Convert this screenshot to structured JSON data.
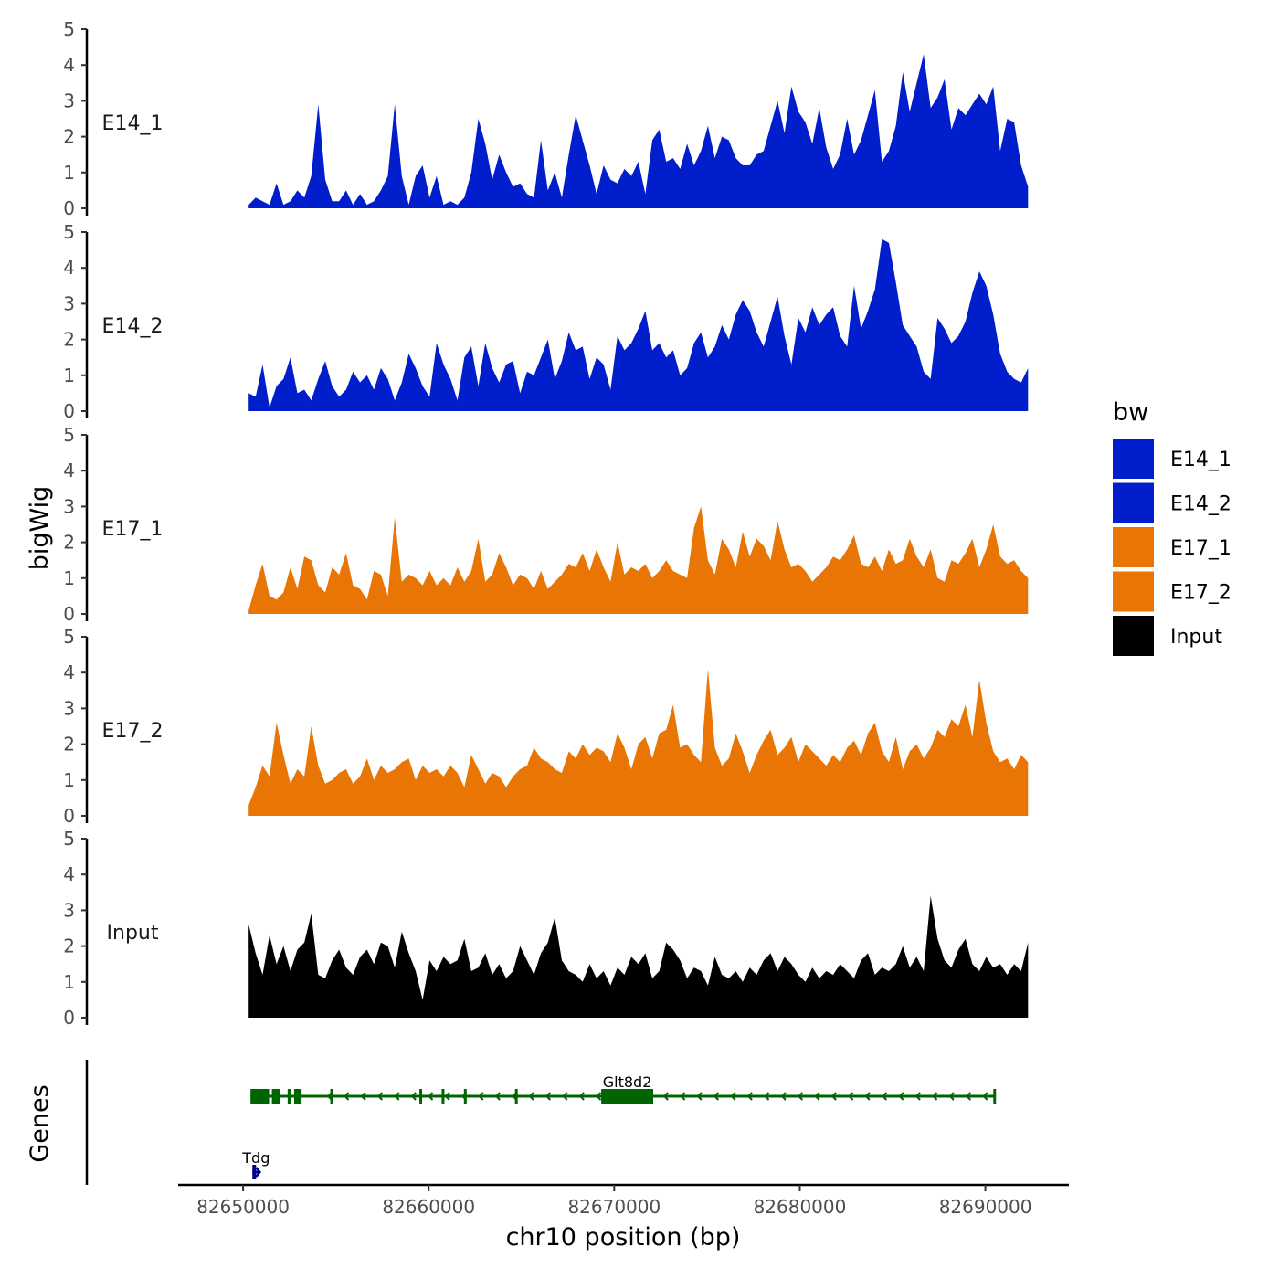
{
  "chart_data": {
    "type": "area",
    "title": "",
    "ylabel": "bigWig",
    "xlabel": "chr10 position (bp)",
    "genes_label": "Genes",
    "xlim": [
      82646500,
      82694500
    ],
    "ylim": [
      0,
      5
    ],
    "x_ticks": [
      82650000,
      82660000,
      82670000,
      82680000,
      82690000
    ],
    "x_tick_labels": [
      "82650000",
      "82660000",
      "82670000",
      "82680000",
      "82690000"
    ],
    "y_ticks": [
      0,
      1,
      2,
      3,
      4,
      5
    ],
    "y_tick_labels": [
      "0",
      "1",
      "2",
      "3",
      "4",
      "5"
    ],
    "legend": {
      "title": "bw",
      "entries": [
        {
          "label": "E14_1",
          "color": "#001ECC"
        },
        {
          "label": "E14_2",
          "color": "#001ECC"
        },
        {
          "label": "E17_1",
          "color": "#E87504"
        },
        {
          "label": "E17_2",
          "color": "#E87504"
        },
        {
          "label": "Input",
          "color": "#000000"
        }
      ]
    },
    "series": [
      {
        "name": "E14_1",
        "color": "#001ECC",
        "x_start": 82650300,
        "x_end": 82692300,
        "values": [
          0.1,
          0.3,
          0.2,
          0.1,
          0.7,
          0.1,
          0.2,
          0.5,
          0.3,
          0.9,
          2.9,
          0.8,
          0.2,
          0.2,
          0.5,
          0.1,
          0.4,
          0.1,
          0.2,
          0.5,
          0.9,
          2.9,
          0.9,
          0.1,
          0.9,
          1.2,
          0.3,
          0.9,
          0.1,
          0.2,
          0.1,
          0.3,
          1.0,
          2.5,
          1.8,
          0.8,
          1.5,
          1.0,
          0.6,
          0.7,
          0.4,
          0.3,
          1.9,
          0.5,
          1.0,
          0.3,
          1.5,
          2.6,
          1.9,
          1.2,
          0.4,
          1.2,
          0.8,
          0.7,
          1.1,
          0.9,
          1.3,
          0.4,
          1.9,
          2.2,
          1.3,
          1.4,
          1.1,
          1.8,
          1.2,
          1.6,
          2.3,
          1.4,
          2.0,
          1.9,
          1.4,
          1.2,
          1.2,
          1.5,
          1.6,
          2.3,
          3.0,
          2.1,
          3.4,
          2.7,
          2.4,
          1.8,
          2.8,
          1.7,
          1.1,
          1.5,
          2.5,
          1.5,
          1.9,
          2.6,
          3.3,
          1.3,
          1.6,
          2.3,
          3.8,
          2.7,
          3.5,
          4.3,
          2.8,
          3.1,
          3.6,
          2.2,
          2.8,
          2.6,
          2.9,
          3.2,
          2.9,
          3.4,
          1.6,
          2.5,
          2.4,
          1.2,
          0.6
        ]
      },
      {
        "name": "E14_2",
        "color": "#001ECC",
        "x_start": 82650300,
        "x_end": 82692300,
        "values": [
          0.5,
          0.4,
          1.3,
          0.1,
          0.7,
          0.9,
          1.5,
          0.5,
          0.6,
          0.3,
          0.9,
          1.4,
          0.7,
          0.4,
          0.6,
          1.1,
          0.8,
          1.0,
          0.6,
          1.2,
          0.9,
          0.3,
          0.8,
          1.6,
          1.2,
          0.7,
          0.4,
          1.9,
          1.3,
          0.9,
          0.3,
          1.5,
          1.8,
          0.7,
          1.9,
          1.2,
          0.8,
          1.3,
          1.4,
          0.5,
          1.1,
          1.0,
          1.5,
          2.0,
          0.9,
          1.4,
          2.2,
          1.7,
          1.8,
          0.9,
          1.5,
          1.3,
          0.6,
          2.1,
          1.7,
          1.9,
          2.3,
          2.8,
          1.7,
          1.9,
          1.5,
          1.7,
          1.0,
          1.2,
          1.9,
          2.2,
          1.5,
          1.8,
          2.4,
          2.0,
          2.7,
          3.1,
          2.8,
          2.2,
          1.8,
          2.5,
          3.2,
          2.1,
          1.3,
          2.6,
          2.2,
          2.9,
          2.4,
          2.7,
          2.9,
          2.1,
          1.8,
          3.5,
          2.3,
          2.8,
          3.4,
          4.8,
          4.7,
          3.6,
          2.4,
          2.1,
          1.8,
          1.1,
          0.9,
          2.6,
          2.3,
          1.9,
          2.1,
          2.5,
          3.3,
          3.9,
          3.5,
          2.7,
          1.6,
          1.1,
          0.9,
          0.8,
          1.2
        ]
      },
      {
        "name": "E17_1",
        "color": "#E87504",
        "x_start": 82650300,
        "x_end": 82692300,
        "values": [
          0.1,
          0.8,
          1.4,
          0.5,
          0.4,
          0.6,
          1.3,
          0.7,
          1.6,
          1.5,
          0.8,
          0.6,
          1.3,
          1.1,
          1.7,
          0.8,
          0.7,
          0.4,
          1.2,
          1.1,
          0.5,
          2.7,
          0.9,
          1.1,
          1.0,
          0.8,
          1.2,
          0.8,
          1.0,
          0.8,
          1.3,
          0.9,
          1.2,
          2.1,
          0.9,
          1.1,
          1.7,
          1.3,
          0.8,
          1.1,
          1.0,
          0.7,
          1.2,
          0.7,
          0.9,
          1.1,
          1.4,
          1.3,
          1.7,
          1.2,
          1.8,
          1.3,
          0.9,
          2.0,
          1.1,
          1.3,
          1.2,
          1.4,
          1.0,
          1.2,
          1.5,
          1.2,
          1.1,
          1.0,
          2.4,
          3.0,
          1.5,
          1.1,
          2.1,
          1.8,
          1.3,
          2.3,
          1.6,
          2.1,
          1.9,
          1.5,
          2.6,
          1.8,
          1.3,
          1.4,
          1.2,
          0.9,
          1.1,
          1.3,
          1.6,
          1.5,
          1.8,
          2.2,
          1.4,
          1.3,
          1.6,
          1.2,
          1.8,
          1.4,
          1.5,
          2.1,
          1.6,
          1.3,
          1.8,
          1.0,
          0.9,
          1.5,
          1.4,
          1.7,
          2.1,
          1.3,
          1.8,
          2.5,
          1.6,
          1.4,
          1.5,
          1.2,
          1.0
        ]
      },
      {
        "name": "E17_2",
        "color": "#E87504",
        "x_start": 82650300,
        "x_end": 82692300,
        "values": [
          0.3,
          0.8,
          1.4,
          1.1,
          2.6,
          1.7,
          0.9,
          1.3,
          1.1,
          2.5,
          1.4,
          0.9,
          1.0,
          1.2,
          1.3,
          0.9,
          1.1,
          1.6,
          1.0,
          1.4,
          1.2,
          1.3,
          1.5,
          1.6,
          1.0,
          1.4,
          1.2,
          1.3,
          1.1,
          1.4,
          1.2,
          0.8,
          1.7,
          1.3,
          0.9,
          1.2,
          1.1,
          0.8,
          1.1,
          1.3,
          1.4,
          1.9,
          1.6,
          1.5,
          1.3,
          1.2,
          1.8,
          1.6,
          2.0,
          1.7,
          1.9,
          1.8,
          1.5,
          2.3,
          1.9,
          1.3,
          2.0,
          2.2,
          1.6,
          2.3,
          2.4,
          3.1,
          1.9,
          2.0,
          1.7,
          1.5,
          4.1,
          1.9,
          1.4,
          1.6,
          2.3,
          1.8,
          1.2,
          1.7,
          2.1,
          2.4,
          1.7,
          1.9,
          2.2,
          1.5,
          2.0,
          1.8,
          1.6,
          1.4,
          1.7,
          1.5,
          1.9,
          2.1,
          1.7,
          2.3,
          2.6,
          1.8,
          1.5,
          2.2,
          1.3,
          1.8,
          2.0,
          1.6,
          1.9,
          2.4,
          2.2,
          2.7,
          2.5,
          3.1,
          2.2,
          3.8,
          2.6,
          1.8,
          1.5,
          1.6,
          1.3,
          1.7,
          1.5
        ]
      },
      {
        "name": "Input",
        "color": "#000000",
        "x_start": 82650300,
        "x_end": 82692300,
        "values": [
          2.6,
          1.8,
          1.2,
          2.3,
          1.5,
          2.0,
          1.3,
          1.9,
          2.1,
          2.9,
          1.2,
          1.1,
          1.6,
          1.9,
          1.4,
          1.2,
          1.7,
          1.9,
          1.5,
          2.1,
          2.0,
          1.4,
          2.4,
          1.8,
          1.3,
          0.5,
          1.6,
          1.3,
          1.7,
          1.5,
          1.6,
          2.2,
          1.3,
          1.4,
          1.8,
          1.2,
          1.5,
          1.1,
          1.3,
          2.0,
          1.6,
          1.2,
          1.8,
          2.1,
          2.8,
          1.6,
          1.3,
          1.2,
          1.0,
          1.5,
          1.1,
          1.3,
          0.9,
          1.4,
          1.2,
          1.7,
          1.5,
          1.8,
          1.1,
          1.3,
          2.1,
          1.9,
          1.6,
          1.1,
          1.4,
          1.3,
          0.9,
          1.7,
          1.2,
          1.1,
          1.3,
          1.0,
          1.4,
          1.2,
          1.6,
          1.8,
          1.3,
          1.7,
          1.5,
          1.2,
          1.0,
          1.4,
          1.1,
          1.3,
          1.2,
          1.5,
          1.3,
          1.1,
          1.6,
          1.8,
          1.2,
          1.4,
          1.3,
          1.5,
          2.0,
          1.4,
          1.7,
          1.3,
          3.4,
          2.2,
          1.6,
          1.4,
          1.9,
          2.2,
          1.5,
          1.3,
          1.7,
          1.4,
          1.5,
          1.2,
          1.5,
          1.3,
          2.1
        ]
      }
    ],
    "genes": [
      {
        "name": "Glt8d2",
        "strand": "-",
        "color": "#006400",
        "start": 82650400,
        "end": 82690500,
        "exons": [
          [
            82650400,
            82651400
          ],
          [
            82651550,
            82652000
          ],
          [
            82652400,
            82652600
          ],
          [
            82652750,
            82653150
          ],
          [
            82654700,
            82654800
          ],
          [
            82659500,
            82659600
          ],
          [
            82660700,
            82660800
          ],
          [
            82661900,
            82662000
          ],
          [
            82664650,
            82664750
          ],
          [
            82669300,
            82672100
          ]
        ]
      },
      {
        "name": "Tdg",
        "strand": "+",
        "color": "#00008B",
        "start": 82650500,
        "end": 82650900,
        "exons": [
          [
            82650500,
            82650700
          ]
        ]
      }
    ]
  }
}
